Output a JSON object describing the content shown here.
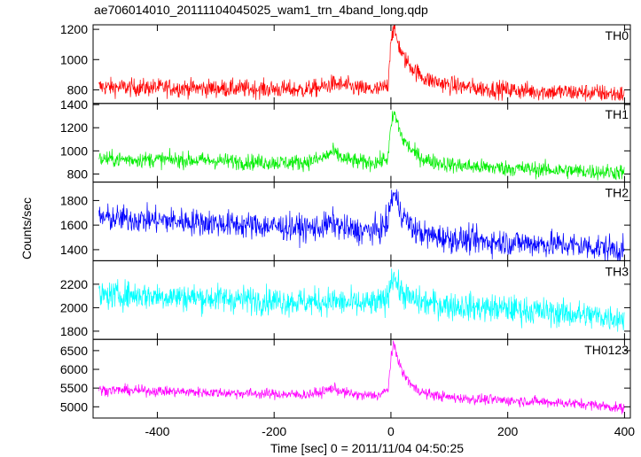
{
  "chart_data": {
    "type": "line",
    "title": "ae706014010_20111104045025_wam1_trn_4band_long.qdp",
    "xlabel": "Time [sec] 0 = 2011/11/04 04:50:25",
    "ylabel": "Counts/sec",
    "xlim": [
      -510,
      410
    ],
    "x_ticks": [
      -400,
      -200,
      0,
      200,
      400
    ],
    "grid": false,
    "panels": [
      {
        "name": "TH0",
        "color": "#ff0000",
        "ylim": [
          710,
          1230
        ],
        "y_ticks": [
          800,
          1000,
          1200
        ],
        "x": [
          -500,
          -450,
          -400,
          -350,
          -300,
          -250,
          -200,
          -150,
          -120,
          -100,
          -80,
          -50,
          -20,
          -5,
          0,
          5,
          10,
          20,
          40,
          60,
          100,
          150,
          200,
          250,
          300,
          350,
          400
        ],
        "y": [
          820,
          815,
          815,
          812,
          810,
          808,
          805,
          800,
          815,
          840,
          830,
          805,
          800,
          830,
          1150,
          1200,
          1140,
          1020,
          930,
          870,
          830,
          810,
          800,
          790,
          785,
          780,
          770
        ],
        "noise": 30
      },
      {
        "name": "TH1",
        "color": "#00ee00",
        "ylim": [
          730,
          1410
        ],
        "y_ticks": [
          800,
          1000,
          1200,
          1400
        ],
        "x": [
          -500,
          -450,
          -400,
          -350,
          -300,
          -250,
          -200,
          -150,
          -120,
          -100,
          -80,
          -50,
          -20,
          -5,
          0,
          5,
          10,
          20,
          40,
          60,
          100,
          150,
          200,
          250,
          300,
          350,
          400
        ],
        "y": [
          930,
          925,
          925,
          920,
          915,
          905,
          900,
          900,
          930,
          990,
          930,
          900,
          905,
          940,
          1200,
          1330,
          1260,
          1100,
          980,
          920,
          880,
          860,
          850,
          840,
          830,
          820,
          815
        ],
        "noise": 35
      },
      {
        "name": "TH2",
        "color": "#0000ff",
        "ylim": [
          1310,
          1950
        ],
        "y_ticks": [
          1400,
          1600,
          1800
        ],
        "x": [
          -500,
          -450,
          -400,
          -350,
          -300,
          -250,
          -200,
          -150,
          -120,
          -100,
          -80,
          -50,
          -20,
          -5,
          0,
          5,
          10,
          20,
          40,
          60,
          100,
          150,
          200,
          250,
          300,
          350,
          400
        ],
        "y": [
          1660,
          1650,
          1640,
          1630,
          1615,
          1600,
          1590,
          1575,
          1580,
          1620,
          1570,
          1550,
          1560,
          1620,
          1800,
          1860,
          1800,
          1680,
          1560,
          1520,
          1490,
          1470,
          1460,
          1450,
          1440,
          1420,
          1400
        ],
        "noise": 55
      },
      {
        "name": "TH3",
        "color": "#00ffff",
        "ylim": [
          1730,
          2400
        ],
        "y_ticks": [
          1800,
          2000,
          2200
        ],
        "x": [
          -500,
          -450,
          -400,
          -350,
          -300,
          -250,
          -200,
          -150,
          -120,
          -100,
          -80,
          -50,
          -20,
          -5,
          0,
          5,
          10,
          20,
          40,
          60,
          100,
          150,
          200,
          250,
          300,
          350,
          400
        ],
        "y": [
          2100,
          2110,
          2100,
          2090,
          2080,
          2070,
          2060,
          2050,
          2050,
          2060,
          2040,
          2030,
          2040,
          2080,
          2250,
          2290,
          2200,
          2120,
          2060,
          2040,
          2020,
          2000,
          1990,
          1970,
          1950,
          1930,
          1910
        ],
        "noise": 60
      },
      {
        "name": "TH0123",
        "color": "#ff00ff",
        "ylim": [
          4700,
          6800
        ],
        "y_ticks": [
          5000,
          5500,
          6000,
          6500
        ],
        "x": [
          -500,
          -450,
          -400,
          -350,
          -300,
          -250,
          -200,
          -150,
          -120,
          -100,
          -80,
          -50,
          -20,
          -5,
          0,
          5,
          10,
          20,
          40,
          60,
          100,
          150,
          200,
          250,
          300,
          350,
          400
        ],
        "y": [
          5450,
          5440,
          5420,
          5400,
          5380,
          5360,
          5340,
          5320,
          5380,
          5500,
          5380,
          5300,
          5310,
          5450,
          6300,
          6650,
          6400,
          5900,
          5500,
          5350,
          5250,
          5200,
          5170,
          5140,
          5100,
          5050,
          4950
        ],
        "noise": 70
      }
    ]
  }
}
